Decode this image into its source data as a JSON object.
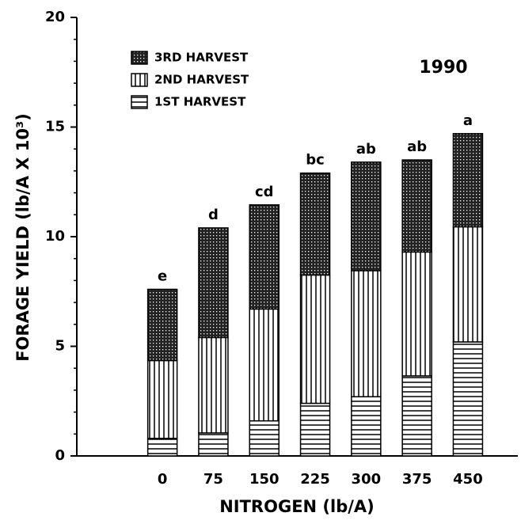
{
  "chart_data": {
    "type": "stacked_bar",
    "x_label": "NITROGEN (lb/A)",
    "y_label": "FORAGE YIELD (lb/A X 10³)",
    "annotation": "1990",
    "categories": [
      "0",
      "75",
      "150",
      "225",
      "300",
      "375",
      "450"
    ],
    "series": [
      {
        "name": "1ST HARVEST",
        "color": "#000000",
        "pattern": "horizontal",
        "values": [
          0.8,
          1.05,
          1.6,
          2.4,
          2.7,
          3.65,
          5.2
        ]
      },
      {
        "name": "2ND HARVEST",
        "color": "#000000",
        "pattern": "vertical",
        "values": [
          3.55,
          4.35,
          5.1,
          5.85,
          5.75,
          5.65,
          5.25
        ]
      },
      {
        "name": "3RD HARVEST",
        "color": "#000000",
        "pattern": "crosshatch",
        "values": [
          3.25,
          5.0,
          4.75,
          4.65,
          4.95,
          4.2,
          4.25
        ]
      }
    ],
    "significance_letters": [
      "e",
      "d",
      "cd",
      "bc",
      "ab",
      "ab",
      "a"
    ],
    "ylim": [
      0,
      20
    ],
    "yticks": [
      0,
      5,
      10,
      15,
      20
    ],
    "yticks_minor": [
      1,
      2,
      3,
      4,
      6,
      7,
      8,
      9,
      11,
      12,
      13,
      14,
      16,
      17,
      18,
      19
    ],
    "legend": "upper left"
  }
}
